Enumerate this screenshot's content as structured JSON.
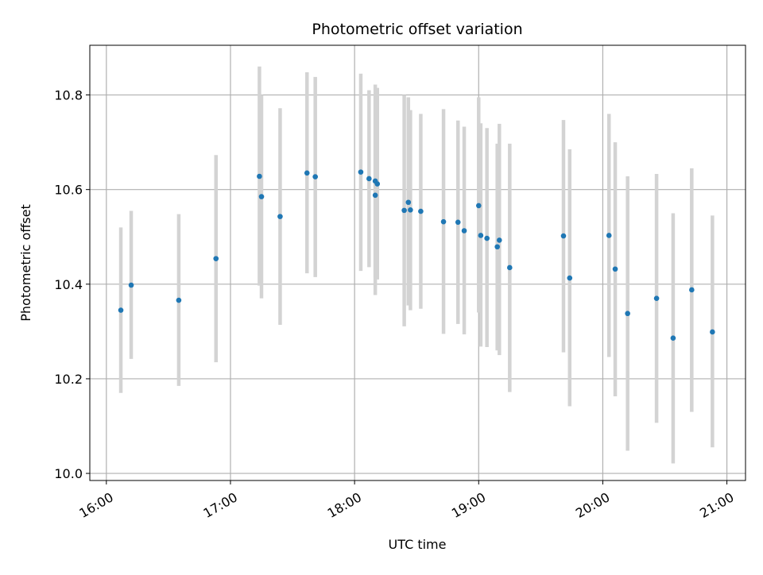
{
  "chart_data": {
    "type": "scatter",
    "title": "Photometric offset variation",
    "xlabel": "UTC time",
    "ylabel": "Photometric offset",
    "x_axis": "time (HH:MM)",
    "xlim": [
      "15:52",
      "21:09"
    ],
    "ylim": [
      9.985,
      10.905
    ],
    "x_ticks": [
      "16:00",
      "17:00",
      "18:00",
      "19:00",
      "20:00",
      "21:00"
    ],
    "y_ticks": [
      "10.0",
      "10.2",
      "10.4",
      "10.6",
      "10.8"
    ],
    "grid": true,
    "colors": {
      "points": "#1f77b4",
      "errorbars": "#d3d3d3",
      "grid": "#b0b0b0"
    },
    "points": [
      {
        "x": "16:07",
        "y": 10.345,
        "ylo": 10.17,
        "yhi": 10.52
      },
      {
        "x": "16:12",
        "y": 10.398,
        "ylo": 10.242,
        "yhi": 10.555
      },
      {
        "x": "16:35",
        "y": 10.366,
        "ylo": 10.185,
        "yhi": 10.548
      },
      {
        "x": "16:53",
        "y": 10.454,
        "ylo": 10.235,
        "yhi": 10.673
      },
      {
        "x": "17:14",
        "y": 10.628,
        "ylo": 10.397,
        "yhi": 10.86
      },
      {
        "x": "17:15",
        "y": 10.585,
        "ylo": 10.37,
        "yhi": 10.8
      },
      {
        "x": "17:24",
        "y": 10.543,
        "ylo": 10.314,
        "yhi": 10.772
      },
      {
        "x": "17:37",
        "y": 10.635,
        "ylo": 10.423,
        "yhi": 10.848
      },
      {
        "x": "17:41",
        "y": 10.627,
        "ylo": 10.415,
        "yhi": 10.838
      },
      {
        "x": "18:03",
        "y": 10.637,
        "ylo": 10.428,
        "yhi": 10.845
      },
      {
        "x": "18:07",
        "y": 10.623,
        "ylo": 10.436,
        "yhi": 10.81
      },
      {
        "x": "18:10",
        "y": 10.588,
        "ylo": 10.377,
        "yhi": 10.8
      },
      {
        "x": "18:10",
        "y": 10.618,
        "ylo": 10.414,
        "yhi": 10.822
      },
      {
        "x": "18:11",
        "y": 10.612,
        "ylo": 10.41,
        "yhi": 10.815
      },
      {
        "x": "18:24",
        "y": 10.556,
        "ylo": 10.311,
        "yhi": 10.8
      },
      {
        "x": "18:26",
        "y": 10.573,
        "ylo": 10.355,
        "yhi": 10.795
      },
      {
        "x": "18:27",
        "y": 10.557,
        "ylo": 10.345,
        "yhi": 10.768
      },
      {
        "x": "18:32",
        "y": 10.554,
        "ylo": 10.348,
        "yhi": 10.76
      },
      {
        "x": "18:43",
        "y": 10.532,
        "ylo": 10.295,
        "yhi": 10.77
      },
      {
        "x": "18:50",
        "y": 10.531,
        "ylo": 10.316,
        "yhi": 10.746
      },
      {
        "x": "18:53",
        "y": 10.513,
        "ylo": 10.294,
        "yhi": 10.733
      },
      {
        "x": "19:00",
        "y": 10.566,
        "ylo": 10.34,
        "yhi": 10.795
      },
      {
        "x": "19:01",
        "y": 10.503,
        "ylo": 10.268,
        "yhi": 10.74
      },
      {
        "x": "19:04",
        "y": 10.497,
        "ylo": 10.267,
        "yhi": 10.73
      },
      {
        "x": "19:09",
        "y": 10.479,
        "ylo": 10.26,
        "yhi": 10.697
      },
      {
        "x": "19:10",
        "y": 10.493,
        "ylo": 10.25,
        "yhi": 10.739
      },
      {
        "x": "19:15",
        "y": 10.435,
        "ylo": 10.172,
        "yhi": 10.697
      },
      {
        "x": "19:41",
        "y": 10.502,
        "ylo": 10.256,
        "yhi": 10.747
      },
      {
        "x": "19:44",
        "y": 10.413,
        "ylo": 10.142,
        "yhi": 10.685
      },
      {
        "x": "20:03",
        "y": 10.503,
        "ylo": 10.246,
        "yhi": 10.76
      },
      {
        "x": "20:06",
        "y": 10.432,
        "ylo": 10.163,
        "yhi": 10.7
      },
      {
        "x": "20:12",
        "y": 10.338,
        "ylo": 10.048,
        "yhi": 10.628
      },
      {
        "x": "20:26",
        "y": 10.37,
        "ylo": 10.107,
        "yhi": 10.633
      },
      {
        "x": "20:34",
        "y": 10.286,
        "ylo": 10.021,
        "yhi": 10.55
      },
      {
        "x": "20:43",
        "y": 10.388,
        "ylo": 10.13,
        "yhi": 10.645
      },
      {
        "x": "20:53",
        "y": 10.299,
        "ylo": 10.055,
        "yhi": 10.545
      }
    ]
  }
}
